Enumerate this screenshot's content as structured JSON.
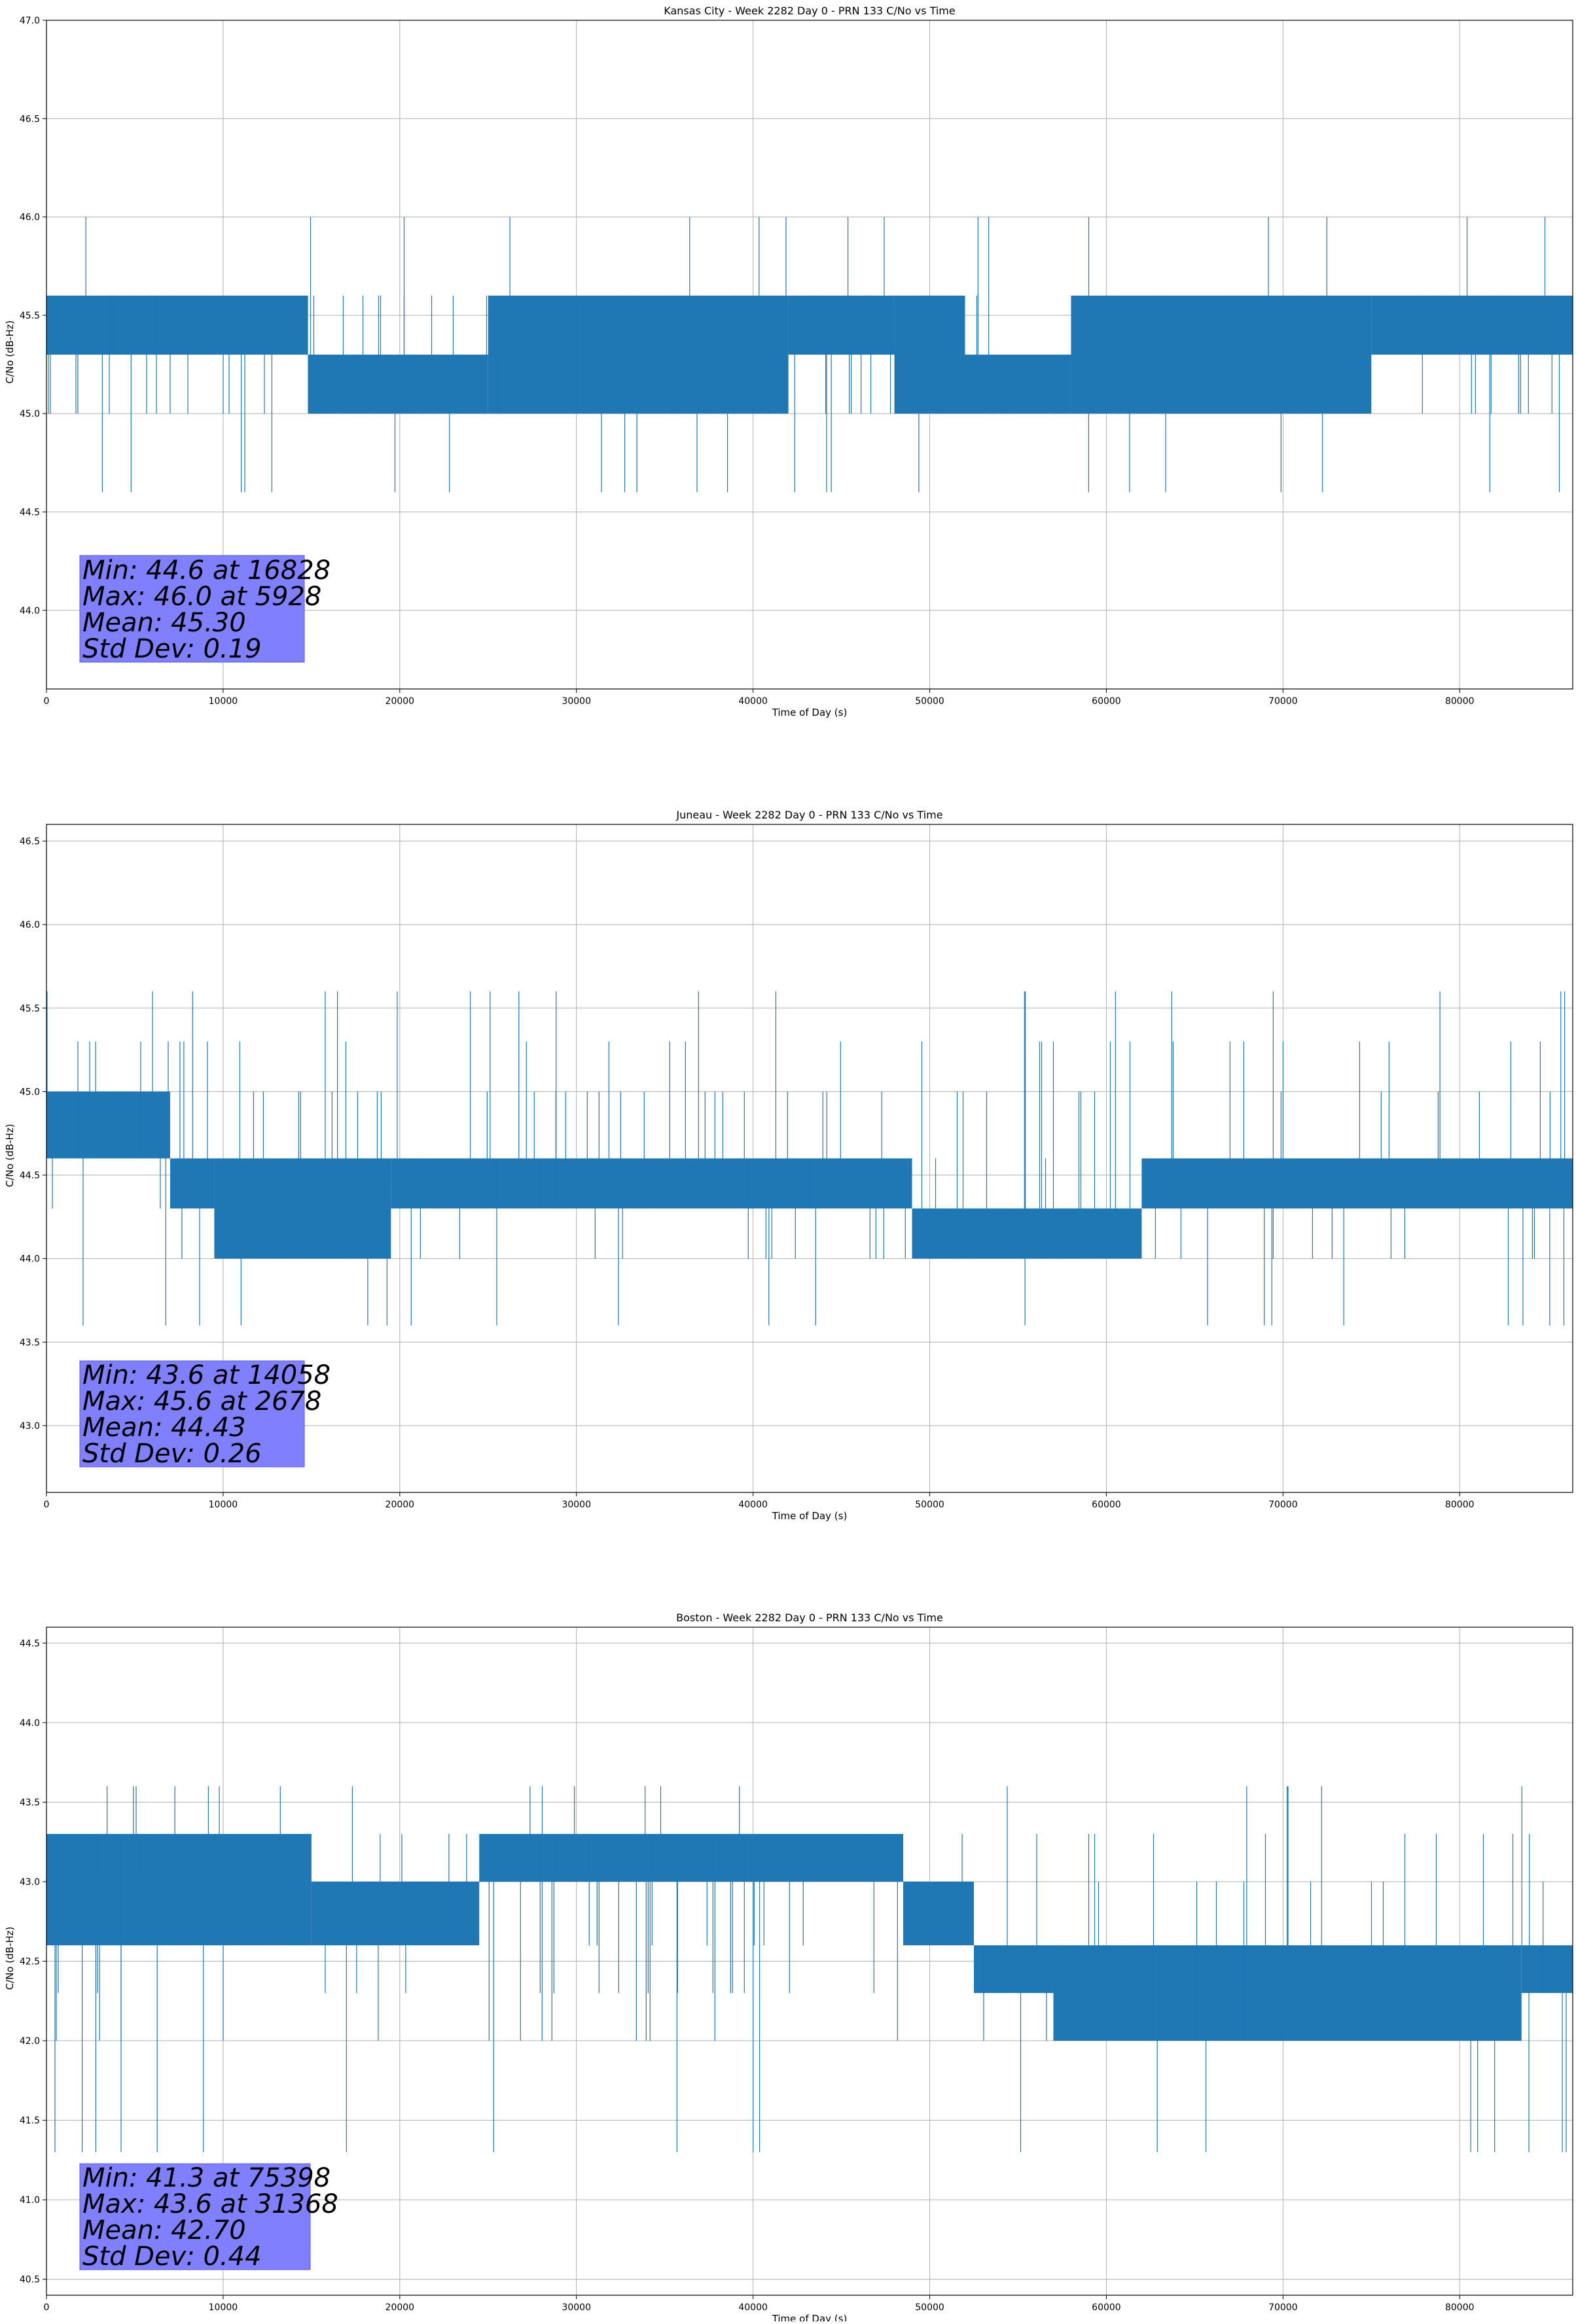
{
  "figure": {
    "line_color": "#1f77b4",
    "stats_box_color": "#8080ff",
    "grid_color": "#b0b0b0"
  },
  "chart_data": [
    {
      "type": "line",
      "title": "Kansas City - Week 2282 Day 0 - PRN 133 C/No vs Time",
      "xlabel": "Time of Day (s)",
      "ylabel": "C/No (dB-Hz)",
      "xlim": [
        0,
        86400
      ],
      "ylim": [
        43.6,
        47.0
      ],
      "xticks": [
        0,
        10000,
        20000,
        30000,
        40000,
        50000,
        60000,
        70000,
        80000
      ],
      "yticks": [
        44.0,
        44.5,
        45.0,
        45.5,
        46.0,
        46.5,
        47.0
      ],
      "grid": true,
      "levels": [
        45.0,
        45.3,
        45.6
      ],
      "spikes": [
        44.6,
        46.0
      ],
      "segments": [
        {
          "x0": 0,
          "x1": 14800,
          "base": 45.3,
          "alt": 45.6,
          "density": 0.55
        },
        {
          "x0": 14800,
          "x1": 25000,
          "base": 45.0,
          "alt": 45.3,
          "density": 0.5
        },
        {
          "x0": 25000,
          "x1": 42000,
          "base": 45.0,
          "alt": 45.6,
          "density": 0.45
        },
        {
          "x0": 42000,
          "x1": 48000,
          "base": 45.3,
          "alt": 45.6,
          "density": 0.55
        },
        {
          "x0": 48000,
          "x1": 52000,
          "base": 45.0,
          "alt": 45.6,
          "density": 0.4
        },
        {
          "x0": 52000,
          "x1": 58000,
          "base": 45.0,
          "alt": 45.3,
          "density": 0.5
        },
        {
          "x0": 58000,
          "x1": 75000,
          "base": 45.0,
          "alt": 45.6,
          "density": 0.45
        },
        {
          "x0": 75000,
          "x1": 86400,
          "base": 45.3,
          "alt": 45.6,
          "density": 0.55
        }
      ],
      "stats": [
        "Min: 44.6 at 16828",
        "Max: 46.0 at 5928",
        "Mean: 45.30",
        "Std Dev: 0.19"
      ]
    },
    {
      "type": "line",
      "title": "Juneau - Week 2282 Day 0 - PRN 133 C/No vs Time",
      "xlabel": "Time of Day (s)",
      "ylabel": "C/No (dB-Hz)",
      "xlim": [
        0,
        86400
      ],
      "ylim": [
        42.6,
        46.6
      ],
      "xticks": [
        0,
        10000,
        20000,
        30000,
        40000,
        50000,
        60000,
        70000,
        80000
      ],
      "yticks": [
        43.0,
        43.5,
        44.0,
        44.5,
        45.0,
        45.5,
        46.0,
        46.5
      ],
      "grid": true,
      "levels": [
        44.0,
        44.3,
        44.6,
        45.0,
        45.3
      ],
      "spikes": [
        43.6,
        45.6
      ],
      "segments": [
        {
          "x0": 0,
          "x1": 7000,
          "base": 44.6,
          "alt": 45.0,
          "density": 0.55
        },
        {
          "x0": 7000,
          "x1": 9500,
          "base": 44.3,
          "alt": 44.6,
          "density": 0.5
        },
        {
          "x0": 9500,
          "x1": 19500,
          "base": 44.0,
          "alt": 44.6,
          "density": 0.45
        },
        {
          "x0": 19500,
          "x1": 49000,
          "base": 44.3,
          "alt": 44.6,
          "density": 0.55
        },
        {
          "x0": 49000,
          "x1": 62000,
          "base": 44.0,
          "alt": 44.3,
          "density": 0.5
        },
        {
          "x0": 62000,
          "x1": 86400,
          "base": 44.3,
          "alt": 44.6,
          "density": 0.5
        }
      ],
      "stats": [
        "Min: 43.6 at 14058",
        "Max: 45.6 at 2678",
        "Mean: 44.43",
        "Std Dev: 0.26"
      ]
    },
    {
      "type": "line",
      "title": "Boston - Week 2282 Day 0 - PRN 133 C/No vs Time",
      "xlabel": "Time of Day (s)",
      "ylabel": "C/No (dB-Hz)",
      "xlim": [
        0,
        86400
      ],
      "ylim": [
        40.4,
        44.6
      ],
      "xticks": [
        0,
        10000,
        20000,
        30000,
        40000,
        50000,
        60000,
        70000,
        80000
      ],
      "yticks": [
        40.5,
        41.0,
        41.5,
        42.0,
        42.5,
        43.0,
        43.5,
        44.0,
        44.5
      ],
      "grid": true,
      "levels": [
        42.0,
        42.3,
        42.6,
        43.0,
        43.3
      ],
      "spikes": [
        41.3,
        43.6
      ],
      "segments": [
        {
          "x0": 0,
          "x1": 15000,
          "base": 42.6,
          "alt": 43.3,
          "density": 0.5
        },
        {
          "x0": 15000,
          "x1": 24500,
          "base": 42.6,
          "alt": 43.0,
          "density": 0.55
        },
        {
          "x0": 24500,
          "x1": 48500,
          "base": 43.0,
          "alt": 43.3,
          "density": 0.6
        },
        {
          "x0": 48500,
          "x1": 52500,
          "base": 42.6,
          "alt": 43.0,
          "density": 0.55
        },
        {
          "x0": 52500,
          "x1": 57000,
          "base": 42.3,
          "alt": 42.6,
          "density": 0.5
        },
        {
          "x0": 57000,
          "x1": 83500,
          "base": 42.0,
          "alt": 42.6,
          "density": 0.5
        },
        {
          "x0": 83500,
          "x1": 86400,
          "base": 42.3,
          "alt": 42.6,
          "density": 0.55
        }
      ],
      "stats": [
        "Min: 41.3 at 75398",
        "Max: 43.6 at 31368",
        "Mean: 42.70",
        "Std Dev: 0.44"
      ]
    }
  ]
}
